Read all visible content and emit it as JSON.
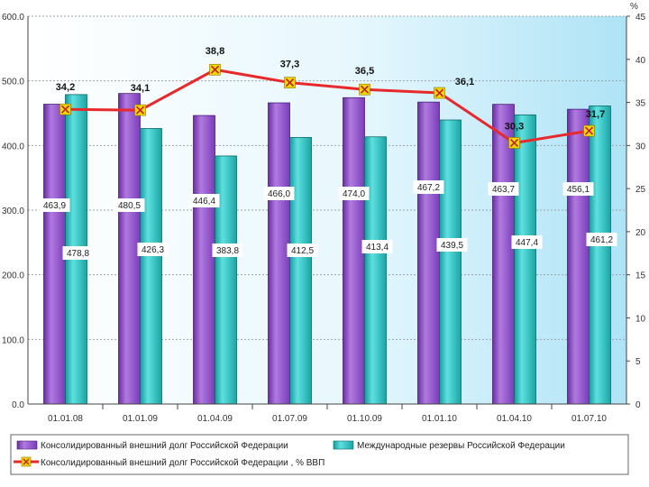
{
  "chart_data": {
    "type": "bar",
    "title": "",
    "categories": [
      "01.01.08",
      "01.01.09",
      "01.04.09",
      "01.07.09",
      "01.10.09",
      "01.01.10",
      "01.04.10",
      "01.07.10"
    ],
    "ylim": [
      0,
      600
    ],
    "yticks": [
      "0.0",
      "100.0",
      "200.0",
      "300.0",
      "400.0",
      "500.0",
      "600.0"
    ],
    "y2lim": [
      0,
      45
    ],
    "y2ticks": [
      "0",
      "5",
      "10",
      "15",
      "20",
      "25",
      "30",
      "35",
      "40",
      "45"
    ],
    "y2unit": "%",
    "grid": true,
    "legend_position": "bottom",
    "series": [
      {
        "name": "Консолидированный внешний долг Российской Федерации",
        "kind": "bar",
        "axis": "left",
        "color": "#9b59d0",
        "values": [
          463.9,
          480.5,
          446.4,
          466.0,
          474.0,
          467.2,
          463.7,
          456.1
        ],
        "labels": [
          "463,9",
          "480,5",
          "446,4",
          "466,0",
          "474,0",
          "467,2",
          "463,7",
          "456,1"
        ]
      },
      {
        "name": "Международные резервы Российской Федерации",
        "kind": "bar",
        "axis": "left",
        "color": "#33c4c4",
        "values": [
          478.8,
          426.3,
          383.8,
          412.5,
          413.4,
          439.5,
          447.4,
          461.2
        ],
        "labels": [
          "478,8",
          "426,3",
          "383,8",
          "412,5",
          "413,4",
          "439,5",
          "447,4",
          "461,2"
        ]
      },
      {
        "name": "Консолидированный внешний долг Российской Федерации , % ВВП",
        "kind": "line",
        "axis": "right",
        "color": "#e8292b",
        "marker_color": "#f5d800",
        "values": [
          34.2,
          34.1,
          38.8,
          37.3,
          36.5,
          36.1,
          30.3,
          31.7
        ],
        "labels": [
          "34,2",
          "34,1",
          "38,8",
          "37,3",
          "36,5",
          "36,1",
          "30,3",
          "31,7"
        ]
      }
    ]
  }
}
